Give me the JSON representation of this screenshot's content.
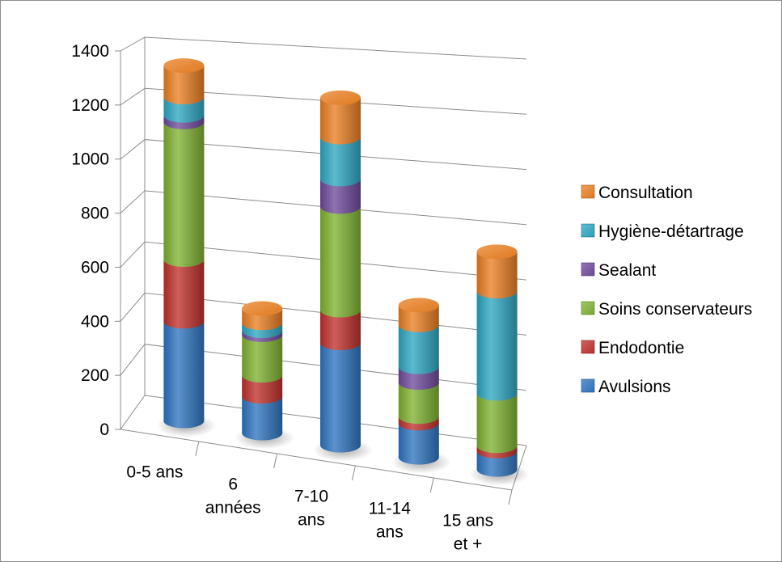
{
  "chart_data": {
    "type": "bar",
    "stacked": true,
    "style": "3d-cylinder",
    "categories": [
      [
        "0-5 ans"
      ],
      [
        "6",
        "années"
      ],
      [
        "7-10",
        "ans"
      ],
      [
        "11-14",
        "ans"
      ],
      [
        "15 ans",
        "et +"
      ]
    ],
    "yticks": [
      "0",
      "200",
      "400",
      "600",
      "800",
      "1000",
      "1200",
      "1400"
    ],
    "ylim": [
      0,
      1400
    ],
    "grid": true,
    "legend_position": "right",
    "series": [
      {
        "name": "Avulsions",
        "color": "#2e74c0",
        "values": [
          380,
          140,
          390,
          130,
          70
        ]
      },
      {
        "name": "Endodontie",
        "color": "#c0302c",
        "values": [
          235,
          80,
          125,
          25,
          20
        ]
      },
      {
        "name": "Soins conservateurs",
        "color": "#7fb231",
        "values": [
          525,
          155,
          395,
          130,
          200
        ]
      },
      {
        "name": "Sealant",
        "color": "#6f4a9c",
        "values": [
          25,
          15,
          105,
          60,
          0
        ]
      },
      {
        "name": "Hygiène-détartrage",
        "color": "#2ea6c2",
        "values": [
          70,
          30,
          160,
          160,
          390
        ]
      },
      {
        "name": "Consultation",
        "color": "#ea7f22",
        "values": [
          120,
          55,
          150,
          75,
          150
        ]
      }
    ]
  }
}
